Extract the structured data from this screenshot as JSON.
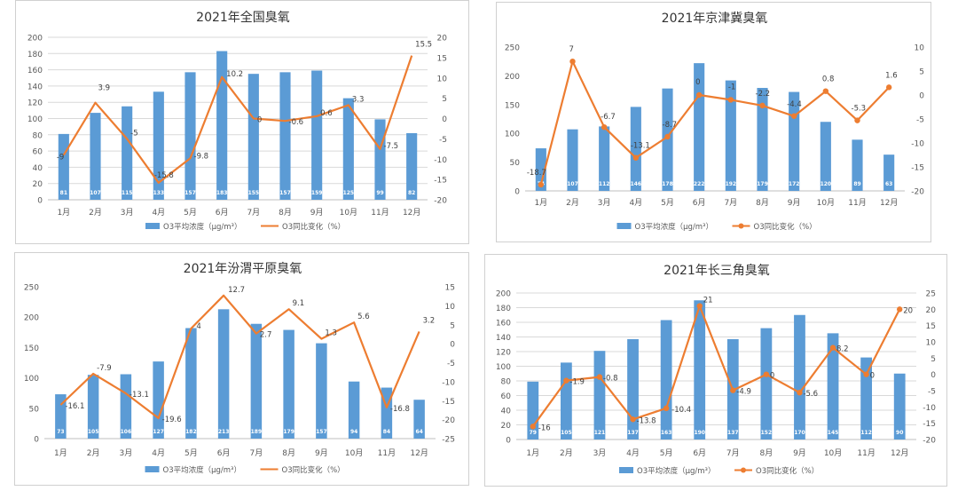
{
  "colors": {
    "bar": "#5b9bd5",
    "line": "#ed7d31",
    "grid": "#d9d9d9",
    "axis_text": "#595959",
    "title": "#333333",
    "bar_label": "#ffffff"
  },
  "chart_data": [
    {
      "type": "bar",
      "title": "2021年全国臭氧",
      "categories": [
        "1月",
        "2月",
        "3月",
        "4月",
        "5月",
        "6月",
        "7月",
        "8月",
        "9月",
        "10月",
        "11月",
        "12月"
      ],
      "series": [
        {
          "name": "O3平均浓度（μg/m³）",
          "type": "bar",
          "axis": "left",
          "values": [
            81,
            107,
            115,
            133,
            157,
            183,
            155,
            157,
            159,
            125,
            99,
            82
          ],
          "labels": [
            "81",
            "107",
            "115",
            "133",
            "157",
            "183",
            "155",
            "157",
            "159",
            "125",
            "99",
            "82"
          ]
        },
        {
          "name": "O3同比变化（%）",
          "type": "line",
          "axis": "right",
          "markers": false,
          "values": [
            -9,
            3.9,
            -5,
            -15.8,
            -9.8,
            10.2,
            0,
            -0.6,
            0.6,
            3.3,
            -7.5,
            15.5
          ],
          "labels": [
            "-9",
            "3.9",
            "-5",
            "-15.8",
            "-9.8",
            "10.2",
            "0",
            "-0.6",
            "0.6",
            "3.3",
            "-7.5",
            "15.5"
          ]
        }
      ],
      "ylim": [
        0,
        200
      ],
      "yticks": [
        0,
        20,
        40,
        60,
        80,
        100,
        120,
        140,
        160,
        180,
        200
      ],
      "y2lim": [
        -20,
        20
      ],
      "y2ticks": [
        -20,
        -15,
        -10,
        -5,
        0,
        5,
        10,
        15,
        20
      ],
      "grid": true,
      "legend": "bottom"
    },
    {
      "type": "bar",
      "title": "2021年京津冀臭氧",
      "categories": [
        "1月",
        "2月",
        "3月",
        "4月",
        "5月",
        "6月",
        "7月",
        "8月",
        "9月",
        "10月",
        "11月",
        "12月"
      ],
      "series": [
        {
          "name": "O3平均浓度（μg/m³）",
          "type": "bar",
          "axis": "left",
          "values": [
            74,
            107,
            112,
            146,
            178,
            222,
            192,
            179,
            172,
            120,
            89,
            63
          ],
          "labels": [
            "74",
            "107",
            "112",
            "146",
            "178",
            "222",
            "192",
            "179",
            "172",
            "120",
            "89",
            "63"
          ]
        },
        {
          "name": "O3同比变化（%）",
          "type": "line",
          "axis": "right",
          "markers": true,
          "values": [
            -18.7,
            7,
            -6.7,
            -13.1,
            -8.7,
            0,
            -1,
            -2.2,
            -4.4,
            0.8,
            -5.3,
            1.6
          ],
          "labels": [
            "-18.7",
            "7",
            "-6.7",
            "-13.1",
            "-8.7",
            "0",
            "-1",
            "-2.2",
            "-4.4",
            "0.8",
            "-5.3",
            "1.6"
          ]
        }
      ],
      "ylim": [
        0,
        250
      ],
      "yticks": [
        0,
        50,
        100,
        150,
        200,
        250
      ],
      "y2lim": [
        -20,
        10
      ],
      "y2ticks": [
        -20,
        -15,
        -10,
        -5,
        0,
        5,
        10
      ],
      "grid": false,
      "legend": "bottom"
    },
    {
      "type": "bar",
      "title": "2021年汾渭平原臭氧",
      "categories": [
        "1月",
        "2月",
        "3月",
        "4月",
        "5月",
        "6月",
        "7月",
        "8月",
        "9月",
        "10月",
        "11月",
        "12月"
      ],
      "series": [
        {
          "name": "O3平均浓度（μg/m³）",
          "type": "bar",
          "axis": "left",
          "values": [
            73,
            105,
            106,
            127,
            182,
            213,
            189,
            179,
            157,
            94,
            84,
            64
          ],
          "labels": [
            "73",
            "105",
            "106",
            "127",
            "182",
            "213",
            "189",
            "179",
            "157",
            "94",
            "84",
            "64"
          ]
        },
        {
          "name": "O3同比变化（%）",
          "type": "line",
          "axis": "right",
          "markers": false,
          "values": [
            -16.1,
            -7.9,
            -13.1,
            -19.6,
            4,
            12.7,
            2.7,
            9.1,
            1.3,
            5.6,
            -16.8,
            3.2
          ],
          "labels": [
            "-16.1",
            "-7.9",
            "-13.1",
            "-19.6",
            "4",
            "12.7",
            "2.7",
            "9.1",
            "1.3",
            "5.6",
            "-16.8",
            "3.2"
          ]
        }
      ],
      "ylim": [
        0,
        250
      ],
      "yticks": [
        0,
        50,
        100,
        150,
        200,
        250
      ],
      "y2lim": [
        -25,
        15
      ],
      "y2ticks": [
        -25,
        -20,
        -15,
        -10,
        -5,
        0,
        5,
        10,
        15
      ],
      "grid": false,
      "legend": "bottom"
    },
    {
      "type": "bar",
      "title": "2021年长三角臭氧",
      "categories": [
        "1月",
        "2月",
        "3月",
        "4月",
        "5月",
        "6月",
        "7月",
        "8月",
        "9月",
        "10月",
        "11月",
        "12月"
      ],
      "series": [
        {
          "name": "O3平均浓度（μg/m³）",
          "type": "bar",
          "axis": "left",
          "values": [
            79,
            105,
            121,
            137,
            163,
            190,
            137,
            152,
            170,
            145,
            112,
            90
          ],
          "labels": [
            "79",
            "105",
            "121",
            "137",
            "163",
            "190",
            "137",
            "152",
            "170",
            "145",
            "112",
            "90"
          ]
        },
        {
          "name": "O3同比变化（%）",
          "type": "line",
          "axis": "right",
          "markers": true,
          "values": [
            -16,
            -1.9,
            -0.8,
            -13.8,
            -10.4,
            21,
            -4.9,
            0,
            -5.6,
            8.2,
            0,
            20
          ],
          "labels": [
            "-16",
            "-1.9",
            "-0.8",
            "-13.8",
            "-10.4",
            "21",
            "-4.9",
            "0",
            "-5.6",
            "8.2",
            "0",
            "20"
          ]
        }
      ],
      "ylim": [
        0,
        200
      ],
      "yticks": [
        0,
        20,
        40,
        60,
        80,
        100,
        120,
        140,
        160,
        180,
        200
      ],
      "y2lim": [
        -20,
        25
      ],
      "y2ticks": [
        -20,
        -15,
        -10,
        -5,
        0,
        5,
        10,
        15,
        20,
        25
      ],
      "grid": true,
      "legend": "bottom"
    }
  ]
}
